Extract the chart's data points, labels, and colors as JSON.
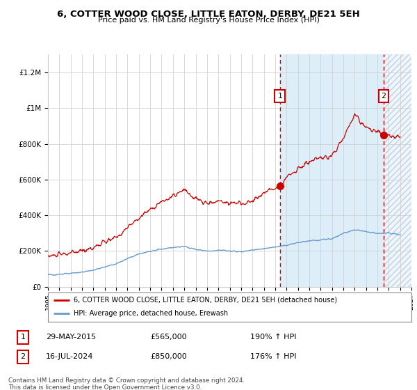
{
  "title": "6, COTTER WOOD CLOSE, LITTLE EATON, DERBY, DE21 5EH",
  "subtitle": "Price paid vs. HM Land Registry's House Price Index (HPI)",
  "legend_line1": "6, COTTER WOOD CLOSE, LITTLE EATON, DERBY, DE21 5EH (detached house)",
  "legend_line2": "HPI: Average price, detached house, Erewash",
  "annotation1_date": "29-MAY-2015",
  "annotation1_price": "£565,000",
  "annotation1_hpi": "190% ↑ HPI",
  "annotation2_date": "16-JUL-2024",
  "annotation2_price": "£850,000",
  "annotation2_hpi": "176% ↑ HPI",
  "copyright": "Contains HM Land Registry data © Crown copyright and database right 2024.\nThis data is licensed under the Open Government Licence v3.0.",
  "red_color": "#cc0000",
  "blue_color": "#6699cc",
  "blue_fill": "#ddeeff",
  "hatch_bg": "#e8f0f8",
  "bg_color": "#ffffff",
  "grid_color": "#cccccc",
  "ylim": [
    0,
    1300000
  ],
  "yticks": [
    0,
    200000,
    400000,
    600000,
    800000,
    1000000,
    1200000
  ],
  "ytick_labels": [
    "£0",
    "£200K",
    "£400K",
    "£600K",
    "£800K",
    "£1M",
    "£1.2M"
  ],
  "sale1_year": 2015.42,
  "sale1_price": 565000,
  "sale2_year": 2024.54,
  "sale2_price": 850000,
  "xmin": 1995,
  "xmax": 2027
}
